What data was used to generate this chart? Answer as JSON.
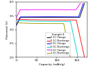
{
  "xlabel": "Capacity (mAh/g)",
  "ylabel": "Potential (V)",
  "xlim": [
    0,
    175
  ],
  "ylim": [
    2.0,
    4.0
  ],
  "xticks": [
    0,
    50,
    100,
    150
  ],
  "yticks": [
    2.0,
    2.5,
    3.0,
    3.5,
    4.0
  ],
  "legend_title": "Sample II",
  "legend_entries": [
    "0.1C Charge",
    "0.1C Discharge",
    "0.5C Charge",
    "0.5C Discharge",
    "1.5C Charge",
    "1.5C Discharge"
  ],
  "charge_01_color": "#000000",
  "discharge_01_color": "#FF0000",
  "charge_05_color": "#0000FF",
  "discharge_05_color": "#00CCCC",
  "charge_15_color": "#FF00FF",
  "discharge_15_color": "#999900",
  "background_color": "#ffffff",
  "charge_01_cap": 168,
  "charge_05_cap": 165,
  "charge_15_cap": 158,
  "discharge_01_cap": 168,
  "discharge_05_cap": 152,
  "discharge_15_cap": 133,
  "charge_01_flat": 3.44,
  "charge_05_flat": 3.46,
  "charge_15_flat": 3.72,
  "discharge_01_flat": 3.35,
  "discharge_05_flat": 3.3,
  "discharge_15_flat": 3.22
}
